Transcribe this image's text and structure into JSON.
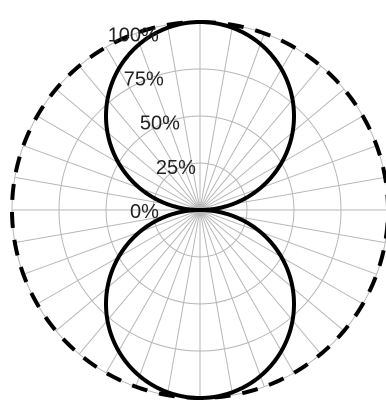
{
  "chart_data": {
    "type": "polar-line",
    "title": "",
    "angle_divisions": 36,
    "radial_range": [
      0,
      100
    ],
    "radial_ticks": [
      0,
      25,
      50,
      75,
      100
    ],
    "radial_tick_labels": [
      "0%",
      "25%",
      "50%",
      "75%",
      "100%"
    ],
    "grid": true,
    "series": [
      {
        "style": "solid",
        "color": "#000000",
        "shape": "figure-eight",
        "description_values": [
          {
            "angle_deg": 0,
            "value": 100
          },
          {
            "angle_deg": 30,
            "value": 87
          },
          {
            "angle_deg": 60,
            "value": 50
          },
          {
            "angle_deg": 90,
            "value": 0
          },
          {
            "angle_deg": 120,
            "value": 50
          },
          {
            "angle_deg": 150,
            "value": 87
          },
          {
            "angle_deg": 180,
            "value": 100
          },
          {
            "angle_deg": 210,
            "value": 87
          },
          {
            "angle_deg": 240,
            "value": 50
          },
          {
            "angle_deg": 270,
            "value": 0
          },
          {
            "angle_deg": 300,
            "value": 50
          },
          {
            "angle_deg": 330,
            "value": 87
          }
        ]
      },
      {
        "style": "dashed",
        "color": "#000000",
        "shape": "circle",
        "description_values": [
          {
            "angle_deg": 0,
            "value": 100
          },
          {
            "angle_deg": 90,
            "value": 100
          },
          {
            "angle_deg": 180,
            "value": 100
          },
          {
            "angle_deg": 270,
            "value": 100
          }
        ]
      }
    ]
  }
}
